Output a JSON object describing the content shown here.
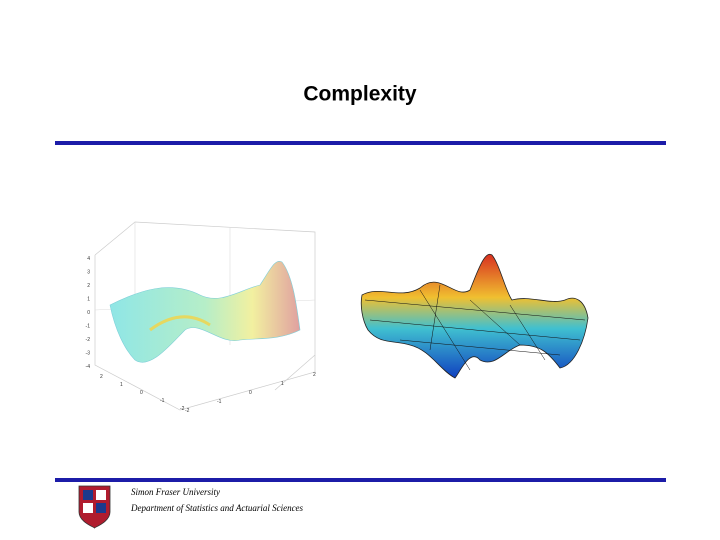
{
  "header": {
    "title": "Complexity"
  },
  "mesh_plot": {
    "z_ticks": [
      "4",
      "3",
      "2",
      "1",
      "0",
      "-1",
      "-2",
      "-3",
      "-4"
    ],
    "x_ticks": [
      "2",
      "1",
      "0",
      "-1",
      "-2"
    ],
    "y_ticks": [
      "-2",
      "-1",
      "0",
      "1",
      "2"
    ]
  },
  "footer": {
    "lines": [
      "Simon Fraser University",
      "Department of Statistics and Actuarial Sciences"
    ]
  }
}
